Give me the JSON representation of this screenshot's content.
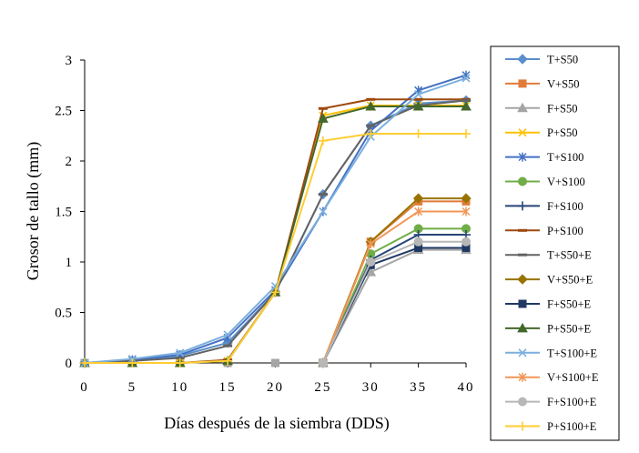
{
  "chart_data": {
    "type": "line",
    "title": "",
    "xlabel": "Días después de la siembra (DDS)",
    "ylabel": "Grosor de tallo (mm)",
    "xlim": [
      0,
      40
    ],
    "ylim": [
      0,
      3
    ],
    "x_ticks": [
      0,
      5,
      10,
      15,
      20,
      25,
      30,
      35,
      40
    ],
    "y_ticks": [
      0,
      0.5,
      1,
      1.5,
      2,
      2.5,
      3
    ],
    "x_tick_labels": [
      "0",
      "5",
      "10",
      "15",
      "20",
      "25",
      "30",
      "35",
      "40"
    ],
    "y_tick_labels": [
      "0",
      "0.5",
      "1",
      "1.5",
      "2",
      "2.5",
      "3"
    ],
    "grid": false,
    "legend_position": "right",
    "series": [
      {
        "name": "T+S50",
        "color": "#5B8FCB",
        "marker": "diamond",
        "x": [
          0,
          5,
          10,
          15,
          20,
          25,
          30,
          35,
          40
        ],
        "y": [
          0,
          0.02,
          0.07,
          0.2,
          0.7,
          1.67,
          2.35,
          2.57,
          2.6
        ]
      },
      {
        "name": "V+S50",
        "color": "#E07B39",
        "marker": "square",
        "x": [
          25,
          30,
          35,
          40
        ],
        "y": [
          0,
          1.2,
          1.6,
          1.6
        ]
      },
      {
        "name": "F+S50",
        "color": "#A5A5A5",
        "marker": "triangle",
        "x": [
          25,
          30,
          35,
          40
        ],
        "y": [
          0,
          0.9,
          1.12,
          1.12
        ]
      },
      {
        "name": "P+S50",
        "color": "#FFC000",
        "marker": "x",
        "x": [
          0,
          5,
          10,
          15,
          20,
          25,
          30,
          35,
          40
        ],
        "y": [
          0,
          0,
          0,
          0.02,
          0.7,
          2.45,
          2.55,
          2.55,
          2.55
        ]
      },
      {
        "name": "T+S100",
        "color": "#4472C4",
        "marker": "star",
        "x": [
          0,
          5,
          10,
          15,
          20,
          25,
          30,
          35,
          40
        ],
        "y": [
          0,
          0.03,
          0.08,
          0.25,
          0.72,
          1.5,
          2.3,
          2.7,
          2.85
        ]
      },
      {
        "name": "V+S100",
        "color": "#70AD47",
        "marker": "circle",
        "x": [
          25,
          30,
          35,
          40
        ],
        "y": [
          0,
          1.08,
          1.33,
          1.33
        ]
      },
      {
        "name": "F+S100",
        "color": "#264478",
        "marker": "plus",
        "x": [
          25,
          30,
          35,
          40
        ],
        "y": [
          0,
          1.02,
          1.27,
          1.27
        ]
      },
      {
        "name": "P+S100",
        "color": "#9E480E",
        "marker": "dash",
        "x": [
          0,
          5,
          10,
          15,
          20,
          25,
          30,
          35,
          40
        ],
        "y": [
          0,
          0,
          0,
          0.03,
          0.7,
          2.52,
          2.61,
          2.61,
          2.61
        ]
      },
      {
        "name": "T+S50+E",
        "color": "#636363",
        "marker": "dash",
        "x": [
          0,
          5,
          10,
          15,
          20,
          25,
          30,
          35,
          40
        ],
        "y": [
          0,
          0.02,
          0.05,
          0.17,
          0.7,
          1.67,
          2.35,
          2.55,
          2.6
        ]
      },
      {
        "name": "V+S50+E",
        "color": "#997300",
        "marker": "diamond",
        "x": [
          25,
          30,
          35,
          40
        ],
        "y": [
          0,
          1.2,
          1.63,
          1.63
        ]
      },
      {
        "name": "F+S50+E",
        "color": "#1F3864",
        "marker": "square",
        "x": [
          25,
          30,
          35,
          40
        ],
        "y": [
          0,
          0.97,
          1.14,
          1.14
        ]
      },
      {
        "name": "P+S50+E",
        "color": "#43682B",
        "marker": "triangle",
        "x": [
          0,
          5,
          10,
          15,
          20,
          25,
          30,
          35,
          40
        ],
        "y": [
          0,
          0,
          0,
          0.02,
          0.7,
          2.42,
          2.54,
          2.54,
          2.54
        ]
      },
      {
        "name": "T+S100+E",
        "color": "#7CAFDD",
        "marker": "x",
        "x": [
          0,
          5,
          10,
          15,
          20,
          25,
          30,
          35,
          40
        ],
        "y": [
          0,
          0.04,
          0.1,
          0.28,
          0.76,
          1.5,
          2.24,
          2.66,
          2.82
        ]
      },
      {
        "name": "V+S100+E",
        "color": "#F1975A",
        "marker": "star",
        "x": [
          25,
          30,
          35,
          40
        ],
        "y": [
          0,
          1.18,
          1.5,
          1.5
        ]
      },
      {
        "name": "F+S100+E",
        "color": "#B7B7B7",
        "marker": "circle",
        "x": [
          25,
          30,
          35,
          40
        ],
        "y": [
          0,
          1.0,
          1.2,
          1.2
        ]
      },
      {
        "name": "P+S100+E",
        "color": "#FFCD33",
        "marker": "plus",
        "x": [
          0,
          5,
          10,
          15,
          20,
          25,
          30,
          35,
          40
        ],
        "y": [
          0,
          0,
          0,
          0.02,
          0.7,
          2.2,
          2.27,
          2.27,
          2.27
        ]
      }
    ],
    "baseline_markers": {
      "note_series": [
        "V+S50",
        "F+S50",
        "V+S100",
        "F+S100",
        "V+S50+E",
        "F+S50+E",
        "V+S100+E",
        "F+S100+E"
      ],
      "x": [
        0,
        5,
        10,
        15,
        20
      ],
      "y": [
        0,
        0,
        0,
        0,
        0
      ]
    }
  }
}
